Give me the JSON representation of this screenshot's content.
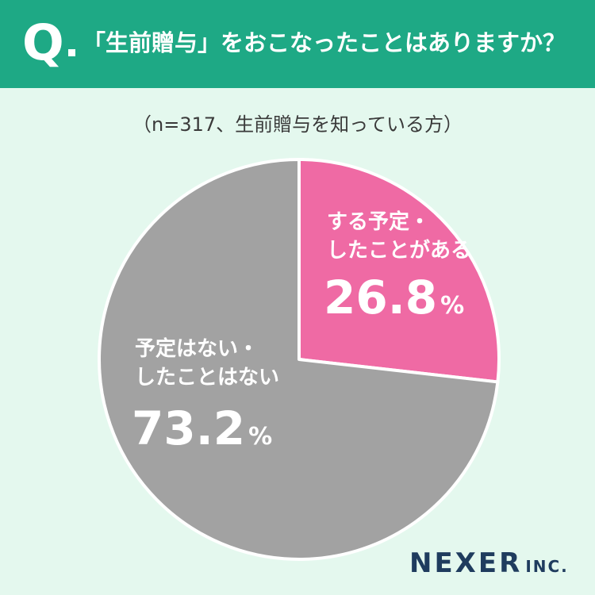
{
  "header": {
    "q_mark": "Q",
    "question": "「生前贈与」をおこなったことはありますか？"
  },
  "sample_note": "（n=317、生前贈与を知っている方）",
  "chart_data": {
    "type": "pie",
    "start_angle_deg": 0,
    "direction": "clockwise",
    "slices": [
      {
        "label_lines": [
          "する予定・",
          "したことがある"
        ],
        "value": 26.8,
        "value_text": "26.8",
        "unit": "%",
        "color": "#ef6aa4"
      },
      {
        "label_lines": [
          "予定はない・",
          "したことはない"
        ],
        "value": 73.2,
        "value_text": "73.2",
        "unit": "%",
        "color": "#a2a2a2"
      }
    ]
  },
  "brand": {
    "main": "NEXER",
    "sub": "INC."
  },
  "colors": {
    "header_bg": "#1ea985",
    "page_bg": "#e4f8ee",
    "brand_text": "#1f3c5e"
  }
}
